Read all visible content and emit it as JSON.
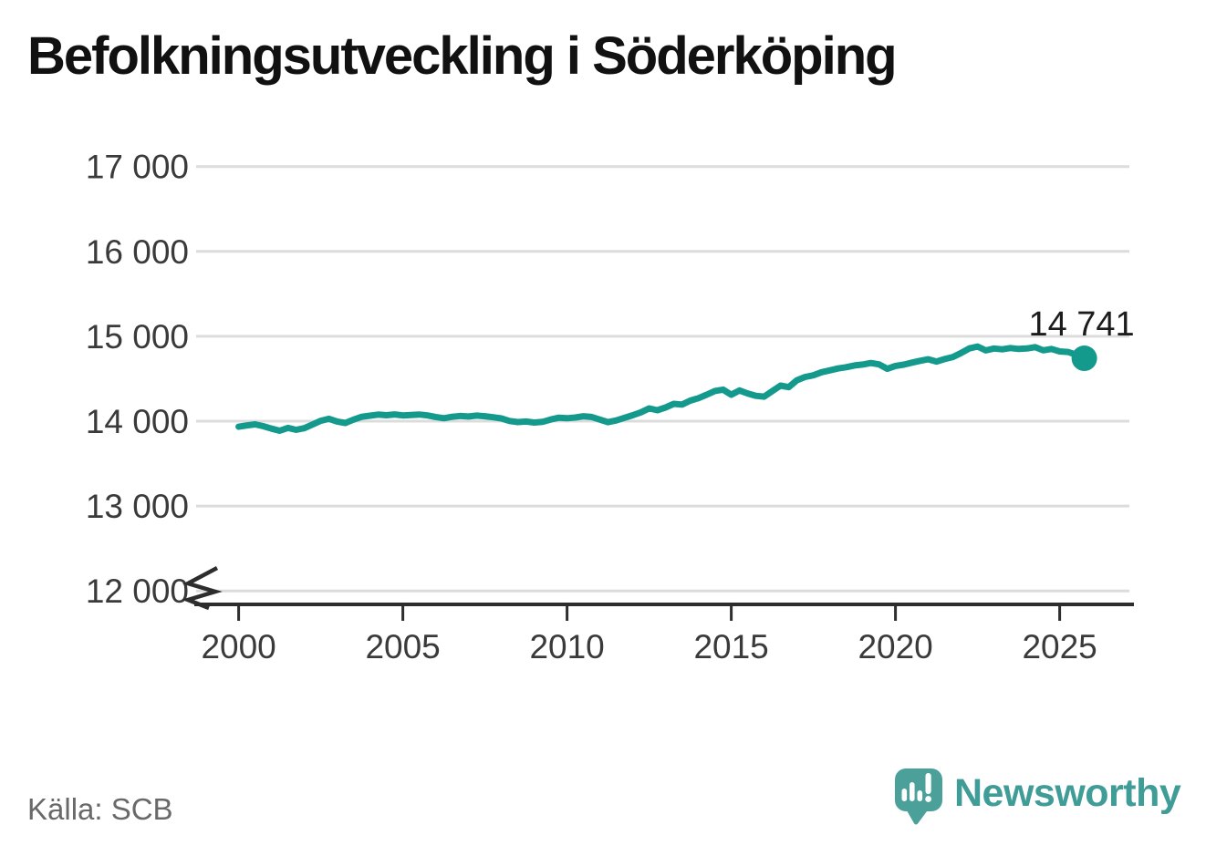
{
  "title": "Befolkningsutveckling i Söderköping",
  "source": "Källa: SCB",
  "branding": {
    "name": "Newsworthy",
    "icon": "speech-bubble-with-bar-chart-and-exclamation",
    "color": "#3f9c96",
    "icon_color": "#4ba19a"
  },
  "chart_data": {
    "type": "line",
    "title": "Befolkningsutveckling i Söderköping",
    "xlabel": "",
    "ylabel": "",
    "ylim": [
      12000,
      17000
    ],
    "xlim": [
      1998.7,
      2027.3
    ],
    "grid": true,
    "legend": false,
    "y_axis_break": true,
    "end_label": "14 741",
    "line_color": "#149a8d",
    "grid_color": "#dcdcdc",
    "axis_color": "#2d2d2d",
    "label_color": "#3a3a3a",
    "end_label_color": "#1c1c1c",
    "x_ticks": [
      {
        "value": 2000,
        "label": "2000"
      },
      {
        "value": 2005,
        "label": "2005"
      },
      {
        "value": 2010,
        "label": "2010"
      },
      {
        "value": 2015,
        "label": "2015"
      },
      {
        "value": 2020,
        "label": "2020"
      },
      {
        "value": 2025,
        "label": "2025"
      }
    ],
    "y_ticks": [
      {
        "value": 12000,
        "label": "12 000"
      },
      {
        "value": 13000,
        "label": "13 000"
      },
      {
        "value": 14000,
        "label": "14 000"
      },
      {
        "value": 15000,
        "label": "15 000"
      },
      {
        "value": 16000,
        "label": "16 000"
      },
      {
        "value": 17000,
        "label": "17 000"
      }
    ],
    "series": [
      {
        "name": "Befolkning",
        "points": [
          [
            2000.0,
            13935
          ],
          [
            2000.25,
            13950
          ],
          [
            2000.5,
            13962
          ],
          [
            2000.75,
            13941
          ],
          [
            2001.0,
            13912
          ],
          [
            2001.25,
            13887
          ],
          [
            2001.5,
            13920
          ],
          [
            2001.75,
            13898
          ],
          [
            2002.0,
            13917
          ],
          [
            2002.25,
            13960
          ],
          [
            2002.5,
            14004
          ],
          [
            2002.75,
            14028
          ],
          [
            2003.0,
            13996
          ],
          [
            2003.25,
            13979
          ],
          [
            2003.5,
            14018
          ],
          [
            2003.75,
            14052
          ],
          [
            2004.0,
            14064
          ],
          [
            2004.25,
            14077
          ],
          [
            2004.5,
            14070
          ],
          [
            2004.75,
            14080
          ],
          [
            2005.0,
            14068
          ],
          [
            2005.25,
            14073
          ],
          [
            2005.5,
            14078
          ],
          [
            2005.75,
            14068
          ],
          [
            2006.0,
            14049
          ],
          [
            2006.25,
            14034
          ],
          [
            2006.5,
            14052
          ],
          [
            2006.75,
            14061
          ],
          [
            2007.0,
            14055
          ],
          [
            2007.25,
            14066
          ],
          [
            2007.5,
            14058
          ],
          [
            2007.75,
            14046
          ],
          [
            2008.0,
            14032
          ],
          [
            2008.25,
            14002
          ],
          [
            2008.5,
            13989
          ],
          [
            2008.75,
            13996
          ],
          [
            2009.0,
            13984
          ],
          [
            2009.25,
            13991
          ],
          [
            2009.5,
            14019
          ],
          [
            2009.75,
            14041
          ],
          [
            2010.0,
            14034
          ],
          [
            2010.25,
            14043
          ],
          [
            2010.5,
            14058
          ],
          [
            2010.75,
            14049
          ],
          [
            2011.0,
            14018
          ],
          [
            2011.25,
            13988
          ],
          [
            2011.5,
            14009
          ],
          [
            2011.75,
            14040
          ],
          [
            2012.0,
            14070
          ],
          [
            2012.25,
            14104
          ],
          [
            2012.5,
            14150
          ],
          [
            2012.75,
            14129
          ],
          [
            2013.0,
            14161
          ],
          [
            2013.25,
            14204
          ],
          [
            2013.5,
            14196
          ],
          [
            2013.75,
            14242
          ],
          [
            2014.0,
            14271
          ],
          [
            2014.25,
            14312
          ],
          [
            2014.5,
            14355
          ],
          [
            2014.75,
            14372
          ],
          [
            2015.0,
            14311
          ],
          [
            2015.25,
            14362
          ],
          [
            2015.5,
            14326
          ],
          [
            2015.75,
            14299
          ],
          [
            2016.0,
            14289
          ],
          [
            2016.25,
            14354
          ],
          [
            2016.5,
            14419
          ],
          [
            2016.75,
            14401
          ],
          [
            2017.0,
            14482
          ],
          [
            2017.25,
            14521
          ],
          [
            2017.5,
            14540
          ],
          [
            2017.75,
            14577
          ],
          [
            2018.0,
            14598
          ],
          [
            2018.25,
            14621
          ],
          [
            2018.5,
            14636
          ],
          [
            2018.75,
            14656
          ],
          [
            2019.0,
            14667
          ],
          [
            2019.25,
            14685
          ],
          [
            2019.5,
            14669
          ],
          [
            2019.75,
            14617
          ],
          [
            2020.0,
            14651
          ],
          [
            2020.25,
            14666
          ],
          [
            2020.5,
            14690
          ],
          [
            2020.75,
            14711
          ],
          [
            2021.0,
            14729
          ],
          [
            2021.25,
            14703
          ],
          [
            2021.5,
            14731
          ],
          [
            2021.75,
            14756
          ],
          [
            2022.0,
            14803
          ],
          [
            2022.25,
            14857
          ],
          [
            2022.5,
            14880
          ],
          [
            2022.75,
            14833
          ],
          [
            2023.0,
            14856
          ],
          [
            2023.25,
            14846
          ],
          [
            2023.5,
            14861
          ],
          [
            2023.75,
            14851
          ],
          [
            2024.0,
            14856
          ],
          [
            2024.25,
            14872
          ],
          [
            2024.5,
            14835
          ],
          [
            2024.75,
            14851
          ],
          [
            2025.0,
            14822
          ],
          [
            2025.25,
            14815
          ],
          [
            2025.5,
            14784
          ],
          [
            2025.75,
            14741
          ]
        ]
      }
    ]
  }
}
